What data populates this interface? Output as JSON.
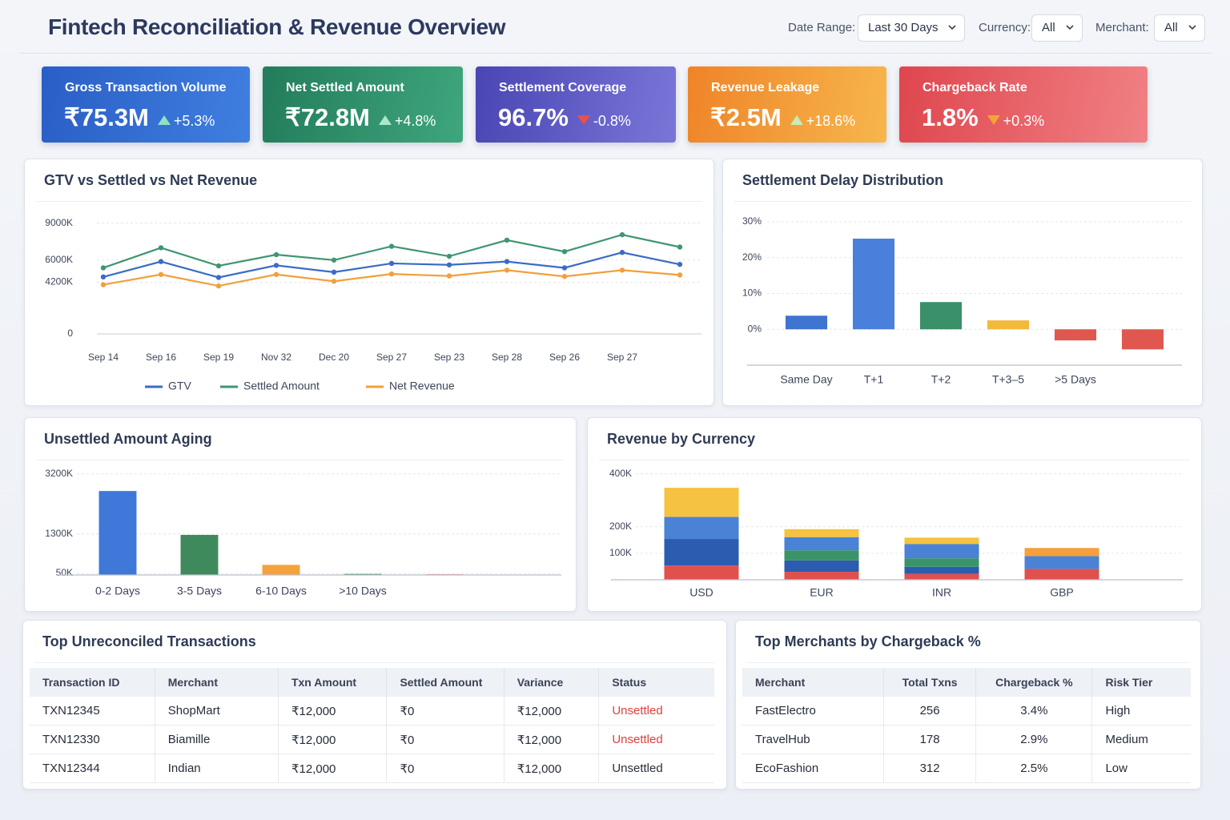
{
  "header": {
    "title": "Fintech Reconciliation & Revenue Overview"
  },
  "filters": [
    {
      "label": "Date Range:",
      "value": "Last 30 Days"
    },
    {
      "label": "Currency:",
      "value": "All"
    },
    {
      "label": "Merchant:",
      "value": "All"
    }
  ],
  "kpis": [
    {
      "label": "Gross Transaction Volume",
      "value": "₹75.3M",
      "delta": "+5.3%",
      "trend": "up",
      "arrow_color": "#8fe3c0",
      "colors": [
        "#2a5ec6",
        "#3f7fdf"
      ]
    },
    {
      "label": "Net Settled Amount",
      "value": "₹72.8M",
      "delta": "+4.8%",
      "trend": "up",
      "arrow_color": "#a9e8cb",
      "colors": [
        "#237c5b",
        "#3ea67d"
      ]
    },
    {
      "label": "Settlement Coverage",
      "value": "96.7%",
      "delta": "-0.8%",
      "trend": "down",
      "arrow_color": "#ea4f4a",
      "colors": [
        "#4945b3",
        "#7a76d8"
      ]
    },
    {
      "label": "Revenue Leakage",
      "value": "₹2.5M",
      "delta": "+18.6%",
      "trend": "up",
      "arrow_color": "#c7ecb8",
      "colors": [
        "#ef8428",
        "#f7b64c"
      ]
    },
    {
      "label": "Chargeback Rate",
      "value": "1.8%",
      "delta": "+0.3%",
      "trend": "down",
      "arrow_color": "#f5a431",
      "colors": [
        "#df464e",
        "#f08184"
      ]
    }
  ],
  "chart_data": [
    {
      "type": "line",
      "title": "GTV vs Settled vs Net Revenue",
      "categories": [
        "Sep 14",
        "Sep 16",
        "Sep 19",
        "Nov 32",
        "Dec 20",
        "Sep 27",
        "Sep 23",
        "Sep 28",
        "Sep 26",
        "Sep 27",
        null
      ],
      "series": [
        {
          "name": "GTV",
          "color": "#3a6cc6",
          "values": [
            4630,
            5880,
            4590,
            5570,
            5020,
            5730,
            5610,
            5880,
            5370,
            6620,
            5650
          ]
        },
        {
          "name": "Settled Amount",
          "color": "#3f9670",
          "values": [
            5370,
            7000,
            5530,
            6440,
            6000,
            7120,
            6310,
            7620,
            6690,
            8060,
            7060
          ]
        },
        {
          "name": "Net Revenue",
          "color": "#f0a03c",
          "values": [
            4000,
            4830,
            3900,
            4830,
            4280,
            4870,
            4710,
            5180,
            4670,
            5180,
            4790
          ]
        }
      ],
      "ylim": [
        0,
        9500
      ],
      "yticks": [
        0,
        {
          "value": 4200,
          "label": "4200K"
        },
        {
          "value": 6000,
          "label": "6000K"
        },
        {
          "value": 9000,
          "label": "9000K"
        }
      ],
      "grid": true
    },
    {
      "type": "bar",
      "title": "Settlement Delay Distribution",
      "categories": [
        "Same Day",
        "T+1",
        "T+2",
        "T+3–5",
        ">5 Days",
        null
      ],
      "values": [
        3.8,
        25.3,
        7.6,
        2.5,
        -3.1,
        -5.6
      ],
      "colors": [
        "#3f74d0",
        "#4a80db",
        "#3a9068",
        "#f2b93b",
        "#e0574f",
        "#e0574f"
      ],
      "ylim": [
        -10,
        32
      ],
      "yticks": [
        {
          "value": 0,
          "label": "0%"
        },
        {
          "value": 10,
          "label": "10%"
        },
        {
          "value": 20,
          "label": "20%"
        },
        {
          "value": 30,
          "label": "30%"
        }
      ],
      "grid": true
    },
    {
      "type": "bar",
      "title": "Unsettled Amount Aging",
      "categories": [
        "0-2 Days",
        "3-5 Days",
        "6-10 Days",
        ">10 Days",
        null
      ],
      "values": [
        2660,
        1270,
        320,
        32,
        21
      ],
      "colors": [
        "#3f78d8",
        "#3f8a5c",
        "#f5a23c",
        "#3f8a5c",
        "#e0504a"
      ],
      "ylim": [
        0,
        3400
      ],
      "yticks": [
        {
          "value": 50,
          "label": "50K"
        },
        {
          "value": 1300,
          "label": "1300K"
        },
        {
          "value": 3200,
          "label": "3200K"
        }
      ],
      "grid": true
    },
    {
      "type": "bar",
      "stacked": true,
      "title": "Revenue by Currency",
      "categories": [
        "USD",
        "EUR",
        "INR",
        "GBP"
      ],
      "series": [
        {
          "color": "#e0504d",
          "values": [
            54,
            30,
            22,
            41
          ]
        },
        {
          "color": "#2c5cb0",
          "values": [
            100,
            43,
            27,
            null
          ]
        },
        {
          "color": "#3a9468",
          "values": [
            null,
            38,
            32,
            null
          ]
        },
        {
          "color": "#4a82d6",
          "values": [
            83,
            50,
            54,
            48
          ]
        },
        {
          "color": "#f5c341",
          "values": [
            110,
            30,
            24,
            null
          ]
        },
        {
          "color": "#f4a03c",
          "values": [
            null,
            null,
            null,
            31
          ]
        }
      ],
      "ylim": [
        0,
        420
      ],
      "yticks": [
        {
          "value": 100,
          "label": "100K"
        },
        {
          "value": 200,
          "label": "200K"
        },
        {
          "value": 400,
          "label": "400K"
        }
      ],
      "grid": true
    }
  ],
  "tables": [
    {
      "title": "Top Unreconciled Transactions",
      "columns": [
        "Transaction ID",
        "Merchant",
        "Txn Amount",
        "Settled Amount",
        "Variance",
        "Status"
      ],
      "rows": [
        [
          "TXN12345",
          "ShopMart",
          "₹12,000",
          "₹0",
          "₹12,000",
          "Unsettled"
        ],
        [
          "TXN12330",
          "Biamille",
          "₹12,000",
          "₹0",
          "₹12,000",
          "Unsettled"
        ],
        [
          "TXN12344",
          "Indian",
          "₹12,000",
          "₹0",
          "₹12,000",
          "Unsettled"
        ]
      ],
      "status_colors": [
        "#e0403a",
        "#e0403a",
        "#2a2f3a"
      ]
    },
    {
      "title": "Top Merchants by Chargeback %",
      "columns": [
        "Merchant",
        "Total Txns",
        "Chargeback %",
        "Risk Tier"
      ],
      "rows": [
        [
          "FastElectro",
          256,
          "3.4%",
          "High"
        ],
        [
          "TravelHub",
          178,
          "2.9%",
          "Medium"
        ],
        [
          "EcoFashion",
          312,
          "2.5%",
          "Low"
        ]
      ]
    }
  ]
}
